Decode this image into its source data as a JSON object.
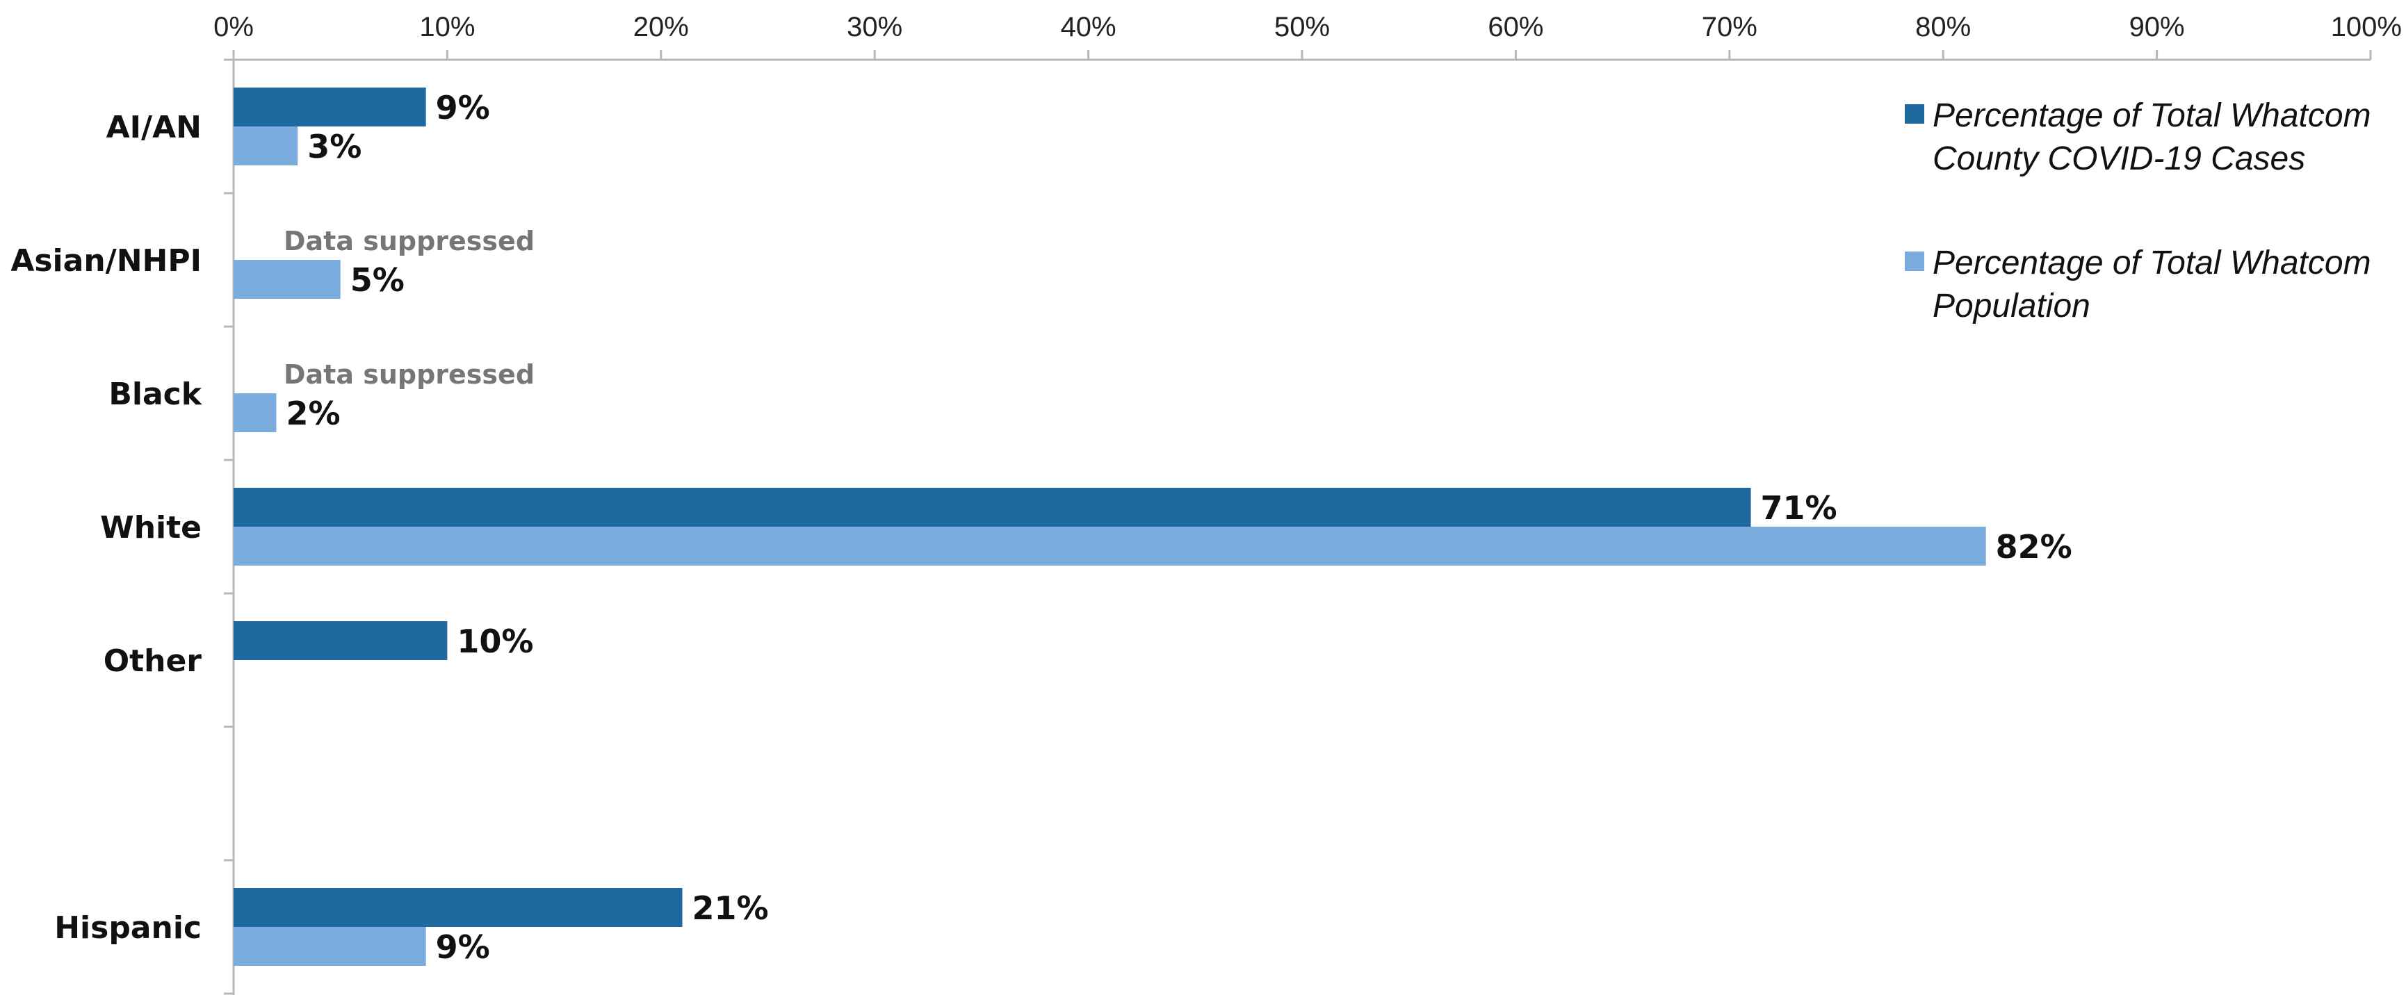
{
  "chart_data": {
    "type": "bar",
    "orientation": "horizontal",
    "categories": [
      "AI/AN",
      "Asian/NHPI",
      "Black",
      "White",
      "Other",
      "",
      "Hispanic"
    ],
    "series": [
      {
        "name": "Percentage of Total Whatcom County COVID-19 Cases",
        "color": "#1f68a0",
        "values": [
          9,
          null,
          null,
          71,
          10,
          null,
          21
        ],
        "labels": [
          "9%",
          "Data suppressed",
          "Data suppressed",
          "71%",
          "10%",
          "",
          "21%"
        ]
      },
      {
        "name": "Percentage of Total Whatcom Population",
        "color": "#7aaddd",
        "values": [
          3,
          5,
          2,
          82,
          null,
          null,
          9
        ],
        "labels": [
          "3%",
          "5%",
          "2%",
          "82%",
          "",
          "",
          "9%"
        ]
      }
    ],
    "xlim": [
      0,
      100
    ],
    "x_ticks": [
      "0%",
      "10%",
      "20%",
      "30%",
      "40%",
      "50%",
      "60%",
      "70%",
      "80%",
      "90%",
      "100%"
    ],
    "x_axis_position": "top",
    "grid": false,
    "legend_position": "top-right",
    "legend": [
      {
        "lines": [
          "Percentage of Total Whatcom",
          "County COVID-19 Cases"
        ],
        "color": "#1f68a0"
      },
      {
        "lines": [
          "Percentage of Total Whatcom",
          "Population"
        ],
        "color": "#7aaddd"
      }
    ]
  }
}
